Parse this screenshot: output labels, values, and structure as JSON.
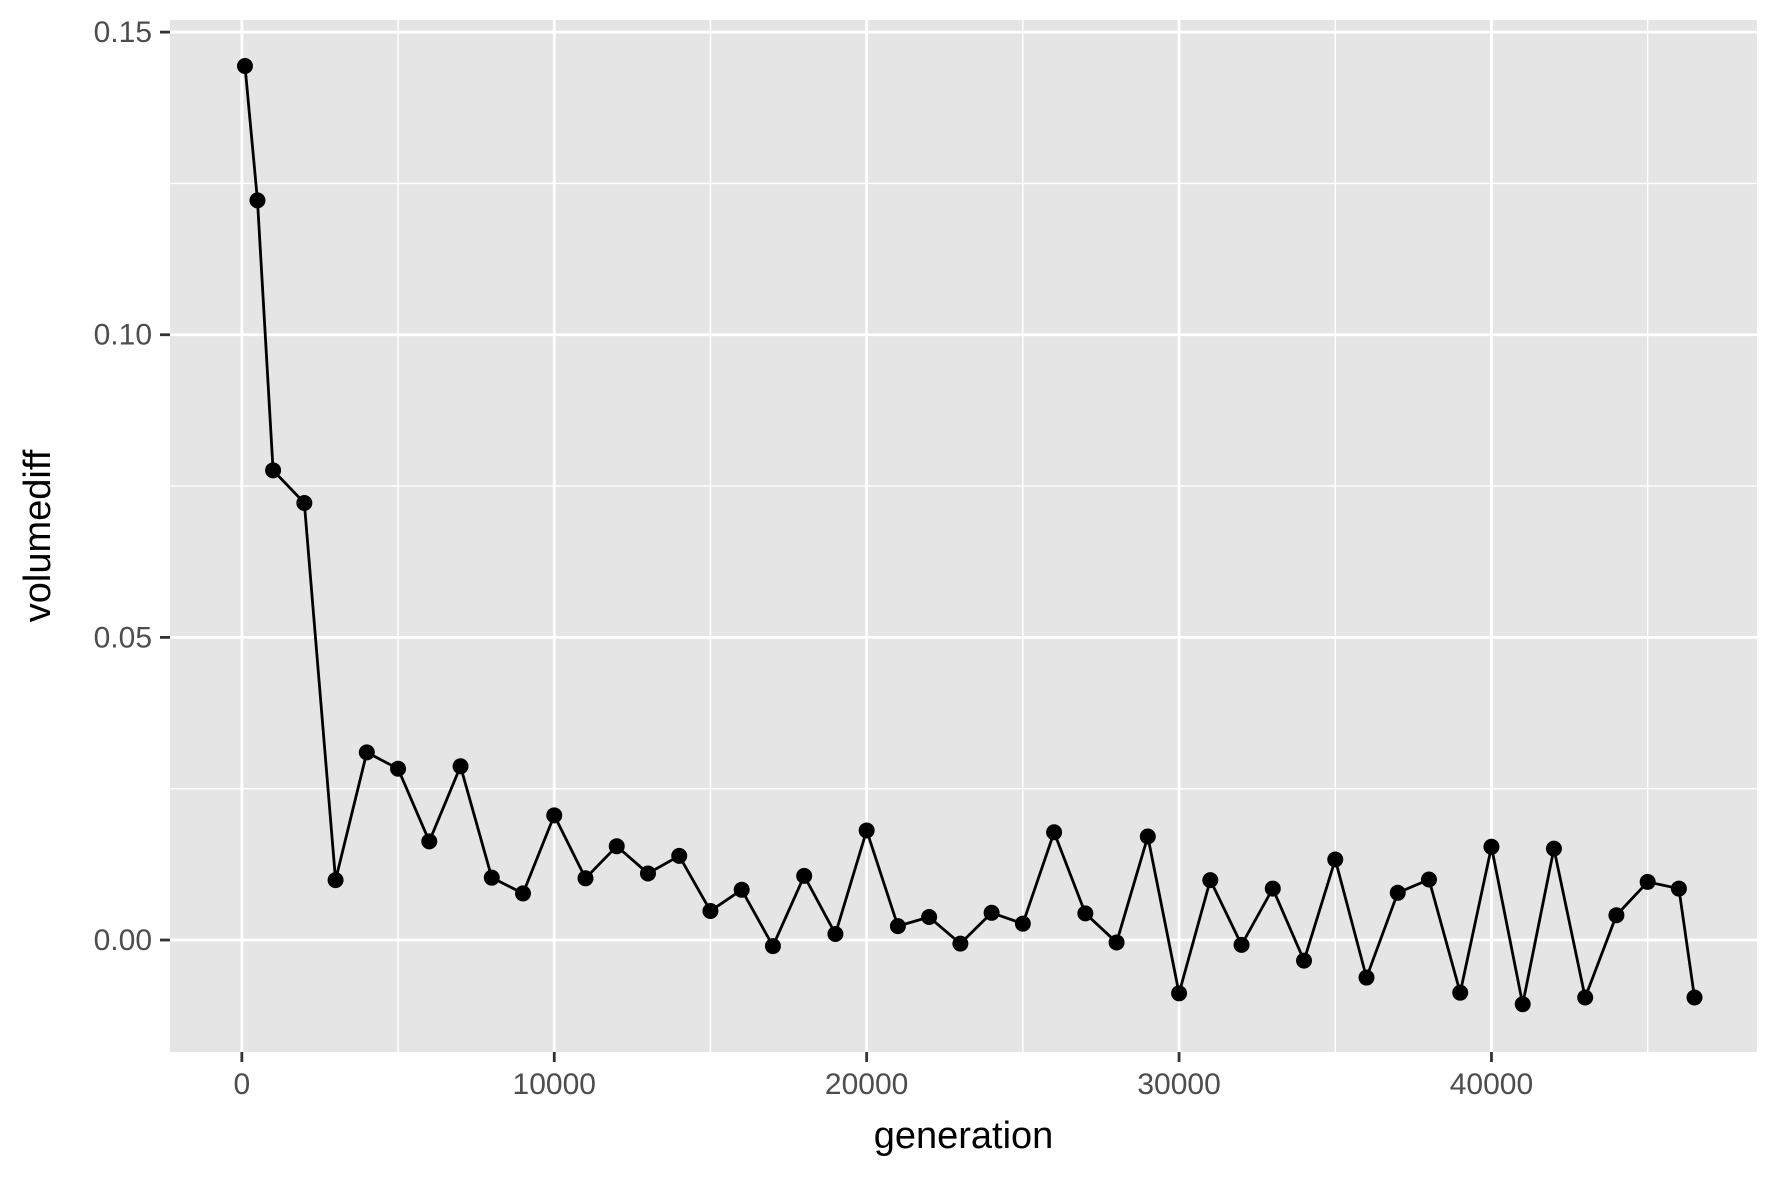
{
  "chart_data": {
    "type": "line",
    "title": "",
    "xlabel": "generation",
    "ylabel": "volumediff",
    "xlim": [
      -2300,
      48500
    ],
    "ylim": [
      -0.0185,
      0.152
    ],
    "xticks": [
      0,
      10000,
      20000,
      30000,
      40000
    ],
    "xtick_labels": [
      "0",
      "10000",
      "20000",
      "30000",
      "40000"
    ],
    "yticks": [
      0.0,
      0.05,
      0.1,
      0.15
    ],
    "ytick_labels": [
      "0.00",
      "0.05",
      "0.10",
      "0.15"
    ],
    "x_minor_gridlines": [
      5000,
      15000,
      25000,
      35000,
      45000
    ],
    "y_minor_gridlines": [
      0.025,
      0.075,
      0.125
    ],
    "grid": true,
    "legend": "none",
    "colors": {
      "panel": "#e5e5e5",
      "grid": "#ffffff",
      "series": "#000000",
      "tick_text": "#4d4d4d",
      "axis_title": "#000000"
    },
    "series": [
      {
        "x": [
          100,
          500,
          1000,
          2000,
          3000,
          4000,
          5000,
          6000,
          7000,
          8000,
          9000,
          10000,
          11000,
          12000,
          13000,
          14000,
          15000,
          16000,
          17000,
          18000,
          19000,
          20000,
          21000,
          22000,
          23000,
          24000,
          25000,
          26000,
          27000,
          28000,
          29000,
          30000,
          31000,
          32000,
          33000,
          34000,
          35000,
          36000,
          37000,
          38000,
          39000,
          40000,
          41000,
          42000,
          43000,
          44000,
          45000,
          46000,
          46500
        ],
        "y": [
          0.1444,
          0.1222,
          0.0776,
          0.0722,
          0.0099,
          0.031,
          0.0283,
          0.0163,
          0.0287,
          0.0103,
          0.0077,
          0.0206,
          0.0102,
          0.0155,
          0.011,
          0.0139,
          0.0048,
          0.0083,
          -0.001,
          0.0106,
          0.001,
          0.0181,
          0.0023,
          0.0038,
          -0.0006,
          0.0045,
          0.0027,
          0.0178,
          0.0044,
          -0.0004,
          0.0171,
          -0.0088,
          0.0099,
          -0.0008,
          0.0085,
          -0.0034,
          0.0133,
          -0.0062,
          0.0078,
          0.01,
          -0.0087,
          0.0154,
          -0.0106,
          0.0151,
          -0.0095,
          0.0041,
          0.0096,
          0.0085,
          -0.0095
        ]
      }
    ]
  }
}
